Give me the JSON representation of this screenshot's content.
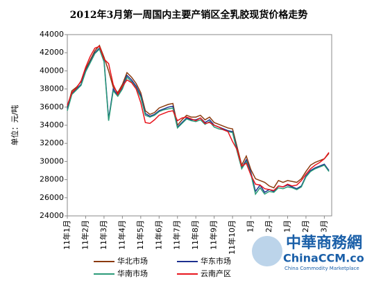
{
  "chart_data": {
    "type": "line",
    "title": "2012年3月第一周国内主要产销区全乳胶现货价格走势",
    "y_label": "单位：元/吨",
    "categories": [
      "11年1月",
      null,
      null,
      null,
      "11年2月",
      null,
      null,
      null,
      "11年3月",
      null,
      null,
      null,
      "11年4月",
      null,
      null,
      null,
      "11年5月",
      null,
      null,
      null,
      "11年6月",
      null,
      null,
      null,
      "11年7月",
      null,
      null,
      null,
      "11年8月",
      null,
      null,
      null,
      "11年9月",
      null,
      null,
      null,
      "11年10月",
      null,
      null,
      null,
      "1月",
      null,
      null,
      null,
      "2月",
      null,
      null,
      null,
      "1月",
      null,
      null,
      null,
      "2月",
      null,
      null,
      null,
      "3月",
      null
    ],
    "series": [
      {
        "name": "华北市场",
        "color": "#8b3a0e",
        "values": [
          36000,
          37800,
          38200,
          38800,
          40200,
          41200,
          42200,
          42800,
          41500,
          40000,
          38200,
          37600,
          38500,
          39800,
          39300,
          38600,
          37600,
          35600,
          35200,
          35400,
          35900,
          36100,
          36300,
          36400,
          34000,
          34600,
          35100,
          34900,
          34900,
          35100,
          34600,
          34900,
          34300,
          34100,
          33900,
          33700,
          33600,
          31600,
          29600,
          30600,
          29100,
          28100,
          27900,
          27700,
          27300,
          27100,
          27900,
          27700,
          27900,
          27800,
          27700,
          28100,
          28900,
          29600,
          29900,
          30100,
          30300,
          30900
        ]
      },
      {
        "name": "华东市场",
        "color": "#1c2f8f",
        "values": [
          35800,
          37500,
          38000,
          38500,
          40000,
          41000,
          42000,
          42500,
          41200,
          34700,
          38000,
          37300,
          38200,
          39500,
          39000,
          38300,
          37300,
          35300,
          35000,
          35200,
          35600,
          35800,
          36000,
          36100,
          33800,
          34300,
          34800,
          34600,
          34600,
          34800,
          34300,
          34600,
          34000,
          33800,
          33600,
          33400,
          33300,
          31300,
          29300,
          30200,
          28800,
          26700,
          27400,
          26600,
          26900,
          26700,
          27300,
          27200,
          27400,
          27200,
          27000,
          27300,
          28400,
          29000,
          29300,
          29500,
          29700,
          29000
        ]
      },
      {
        "name": "华南市场",
        "color": "#2a9a78",
        "values": [
          35600,
          37400,
          37900,
          38400,
          39900,
          40900,
          41900,
          42400,
          41000,
          34500,
          37800,
          37200,
          38000,
          39300,
          38800,
          38100,
          37100,
          35100,
          34900,
          35100,
          35500,
          35700,
          35800,
          35900,
          33700,
          34200,
          34700,
          34500,
          34400,
          34600,
          34100,
          34400,
          33800,
          33600,
          33500,
          33300,
          33200,
          31100,
          29200,
          30000,
          28600,
          26400,
          27100,
          26400,
          26700,
          26600,
          27100,
          27000,
          27200,
          27100,
          26900,
          27200,
          28300,
          28900,
          29200,
          29400,
          29600,
          28900
        ]
      },
      {
        "name": "云南产区",
        "color": "#e8141c",
        "values": [
          36200,
          37600,
          38100,
          38900,
          40400,
          41600,
          42500,
          42700,
          41300,
          40800,
          38500,
          37400,
          38300,
          39000,
          38700,
          38000,
          36500,
          34300,
          34200,
          34600,
          35100,
          35300,
          35500,
          35600,
          34500,
          34800,
          34900,
          34700,
          34500,
          34800,
          34200,
          34300,
          34000,
          33800,
          33500,
          33300,
          32200,
          31300,
          29500,
          29800,
          28500,
          27500,
          27400,
          27000,
          26900,
          26800,
          27300,
          27200,
          27500,
          27300,
          27400,
          27900,
          28600,
          29200,
          29600,
          29900,
          30300,
          31000
        ]
      }
    ],
    "ylim": [
      24000,
      44000
    ],
    "yticks": [
      24000,
      26000,
      28000,
      30000,
      32000,
      34000,
      36000,
      38000,
      40000,
      42000,
      44000
    ],
    "watermark": {
      "name": "中華商務網",
      "site": "ChinaCCM.com",
      "tagline": "China Commodity Marketplace"
    }
  }
}
